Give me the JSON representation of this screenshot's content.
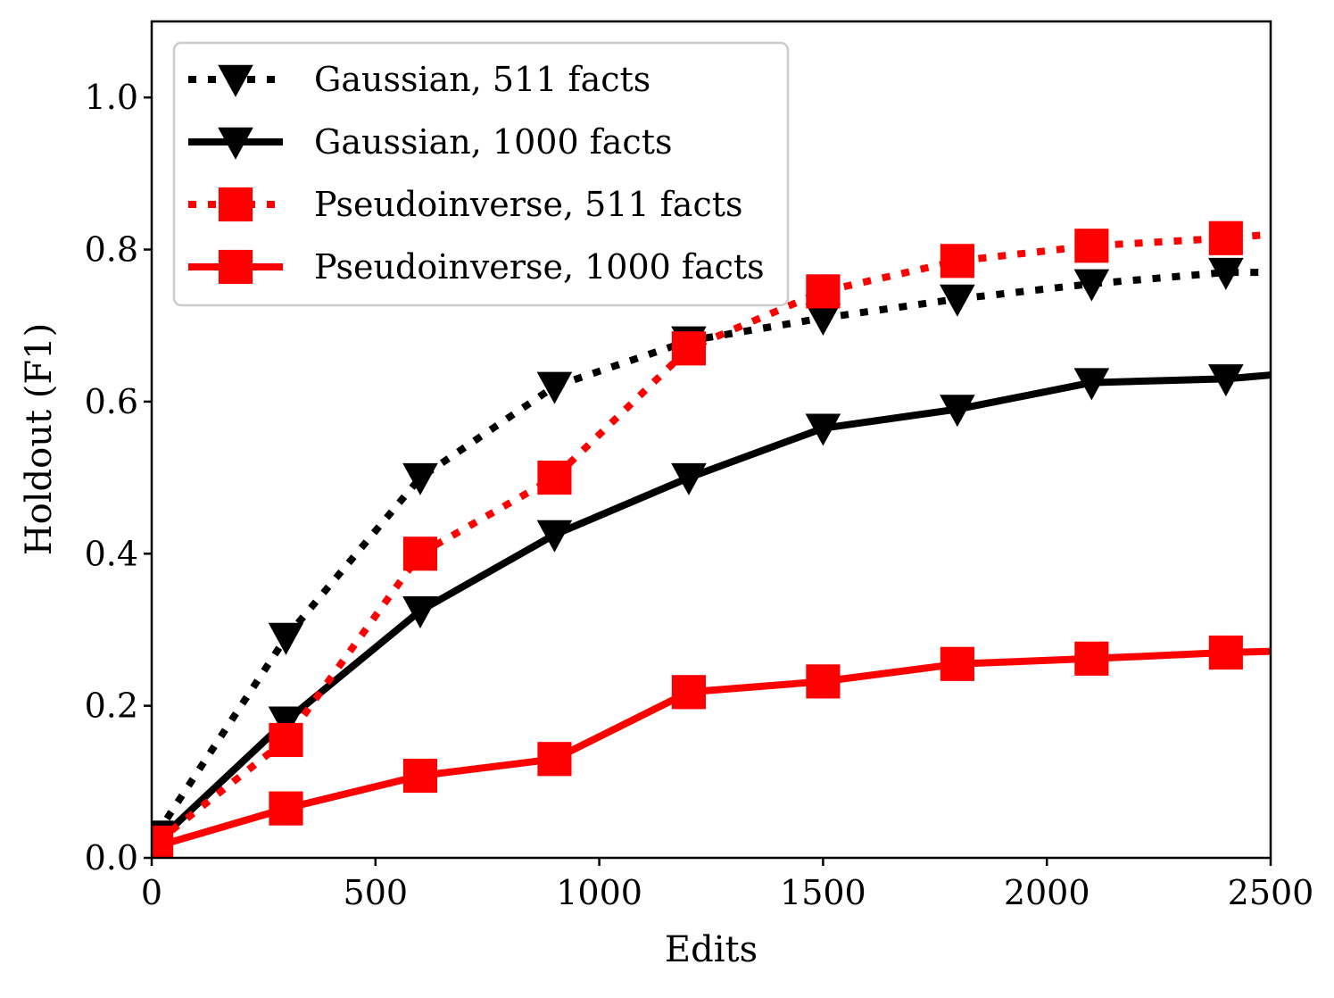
{
  "chart_data": {
    "type": "line",
    "title": "",
    "xlabel": "Edits",
    "ylabel": "Holdout (F1)",
    "xlim": [
      0,
      2500
    ],
    "ylim": [
      0,
      1.1
    ],
    "x_ticks": [
      "0",
      "500",
      "1000",
      "1500",
      "2000",
      "2500"
    ],
    "y_ticks": [
      "0.0",
      "0.2",
      "0.4",
      "0.6",
      "0.8",
      "1.0"
    ],
    "grid": false,
    "legend_position": "top-left",
    "series": [
      {
        "name": "Gaussian, 511 facts",
        "color": "#000000",
        "line_style": "dotted",
        "marker": "triangle-down",
        "x": [
          10,
          300,
          600,
          900,
          1200,
          1500,
          1800,
          2100,
          2400,
          2700
        ],
        "y": [
          0.03,
          0.29,
          0.5,
          0.62,
          0.68,
          0.71,
          0.735,
          0.755,
          0.77,
          0.77
        ]
      },
      {
        "name": "Gaussian, 1000 facts",
        "color": "#000000",
        "line_style": "solid",
        "marker": "triangle-down",
        "x": [
          10,
          300,
          600,
          900,
          1200,
          1500,
          1800,
          2100,
          2400,
          2700
        ],
        "y": [
          0.02,
          0.18,
          0.325,
          0.425,
          0.5,
          0.565,
          0.59,
          0.625,
          0.63,
          0.645
        ]
      },
      {
        "name": "Pseudoinverse, 511 facts",
        "color": "#ff0000",
        "line_style": "dotted",
        "marker": "square",
        "x": [
          10,
          300,
          600,
          900,
          1200,
          1500,
          1800,
          2100,
          2400,
          2700
        ],
        "y": [
          0.02,
          0.155,
          0.4,
          0.5,
          0.67,
          0.745,
          0.785,
          0.805,
          0.815,
          0.83
        ]
      },
      {
        "name": "Pseudoinverse, 1000 facts",
        "color": "#ff0000",
        "line_style": "solid",
        "marker": "square",
        "x": [
          10,
          300,
          600,
          900,
          1200,
          1500,
          1800,
          2100,
          2400,
          2700
        ],
        "y": [
          0.015,
          0.065,
          0.108,
          0.13,
          0.218,
          0.232,
          0.255,
          0.262,
          0.27,
          0.275
        ]
      }
    ]
  }
}
